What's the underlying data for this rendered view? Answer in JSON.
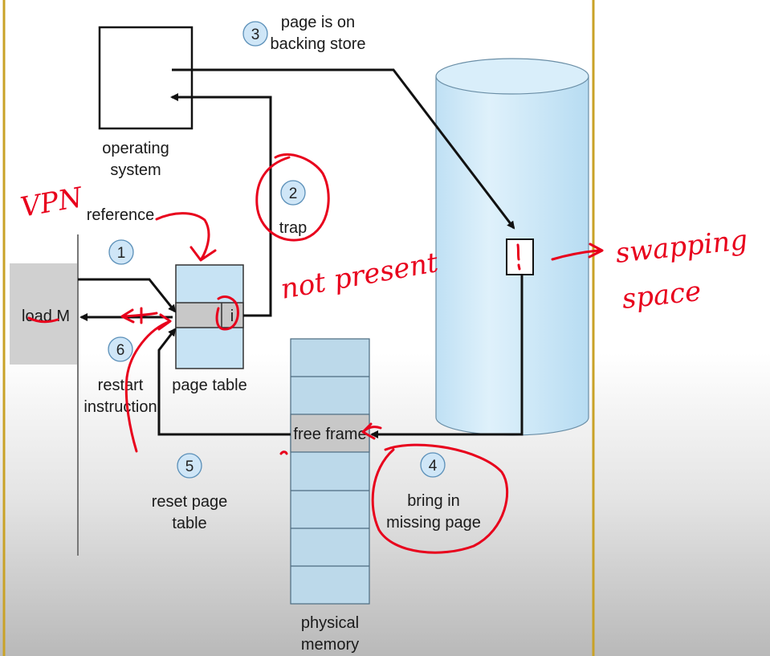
{
  "labels": {
    "os_box": [
      "operating",
      "system"
    ],
    "reference": "reference",
    "load_m": "load M",
    "page_table": "page table",
    "page_table_entry": "i",
    "free_frame": "free frame",
    "physical_memory": [
      "physical",
      "memory"
    ]
  },
  "steps": [
    {
      "number": "1",
      "text": []
    },
    {
      "number": "2",
      "text": [
        "trap"
      ]
    },
    {
      "number": "3",
      "text": [
        "page is on",
        "backing store"
      ]
    },
    {
      "number": "4",
      "text": [
        "bring in",
        "missing page"
      ]
    },
    {
      "number": "5",
      "text": [
        "reset page",
        "table"
      ]
    },
    {
      "number": "6",
      "text": [
        "restart",
        "instruction"
      ]
    }
  ],
  "annotations": {
    "vpn": "VPN",
    "not_present": "not present",
    "swapping_space": [
      "swapping",
      "space"
    ]
  },
  "colors": {
    "frame_border": "#c9a227",
    "disk_fill": "#cde8f8",
    "memory_fill": "#bcd9ea",
    "page_table_fill": "#c7e3f4",
    "highlight_row": "#c8c8c8",
    "ink": "#e8001c"
  }
}
